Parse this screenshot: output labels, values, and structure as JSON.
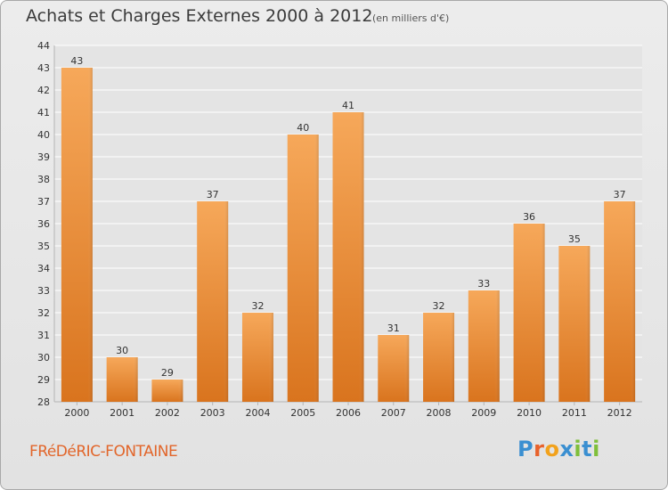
{
  "title": "Achats et Charges Externes 2000 à 2012",
  "subtitle": "(en milliers d'€)",
  "commune": "FRéDéRIC-FONTAINE",
  "logo": {
    "letters": [
      "P",
      "r",
      "o",
      "x",
      "i",
      "t",
      "i"
    ],
    "colors": [
      "#3a8fd1",
      "#e8622b",
      "#f2a21c",
      "#3a8fd1",
      "#7fbf3b",
      "#3a8fd1",
      "#7fbf3b"
    ]
  },
  "colors": {
    "bar_light": "#f6a85a",
    "bar_dark": "#d9741e",
    "grid": "#ffffff",
    "axis_text": "#333333",
    "title": "#3b3b3b",
    "commune": "#e2662b"
  },
  "chart_data": {
    "type": "bar",
    "title": "Achats et Charges Externes 2000 à 2012",
    "subtitle": "(en milliers d'€)",
    "categories": [
      "2000",
      "2001",
      "2002",
      "2003",
      "2004",
      "2005",
      "2006",
      "2007",
      "2008",
      "2009",
      "2010",
      "2011",
      "2012"
    ],
    "values": [
      43,
      30,
      29,
      37,
      32,
      40,
      41,
      31,
      32,
      33,
      36,
      35,
      37
    ],
    "data_labels": [
      "43",
      "30",
      "29",
      "37",
      "32",
      "40",
      "41",
      "31",
      "32",
      "33",
      "36",
      "35",
      "37"
    ],
    "ylim": [
      28,
      44
    ],
    "yticks": [
      28,
      29,
      30,
      31,
      32,
      33,
      34,
      35,
      36,
      37,
      38,
      39,
      40,
      41,
      42,
      43,
      44
    ],
    "grid": true,
    "xlabel": "",
    "ylabel": ""
  }
}
